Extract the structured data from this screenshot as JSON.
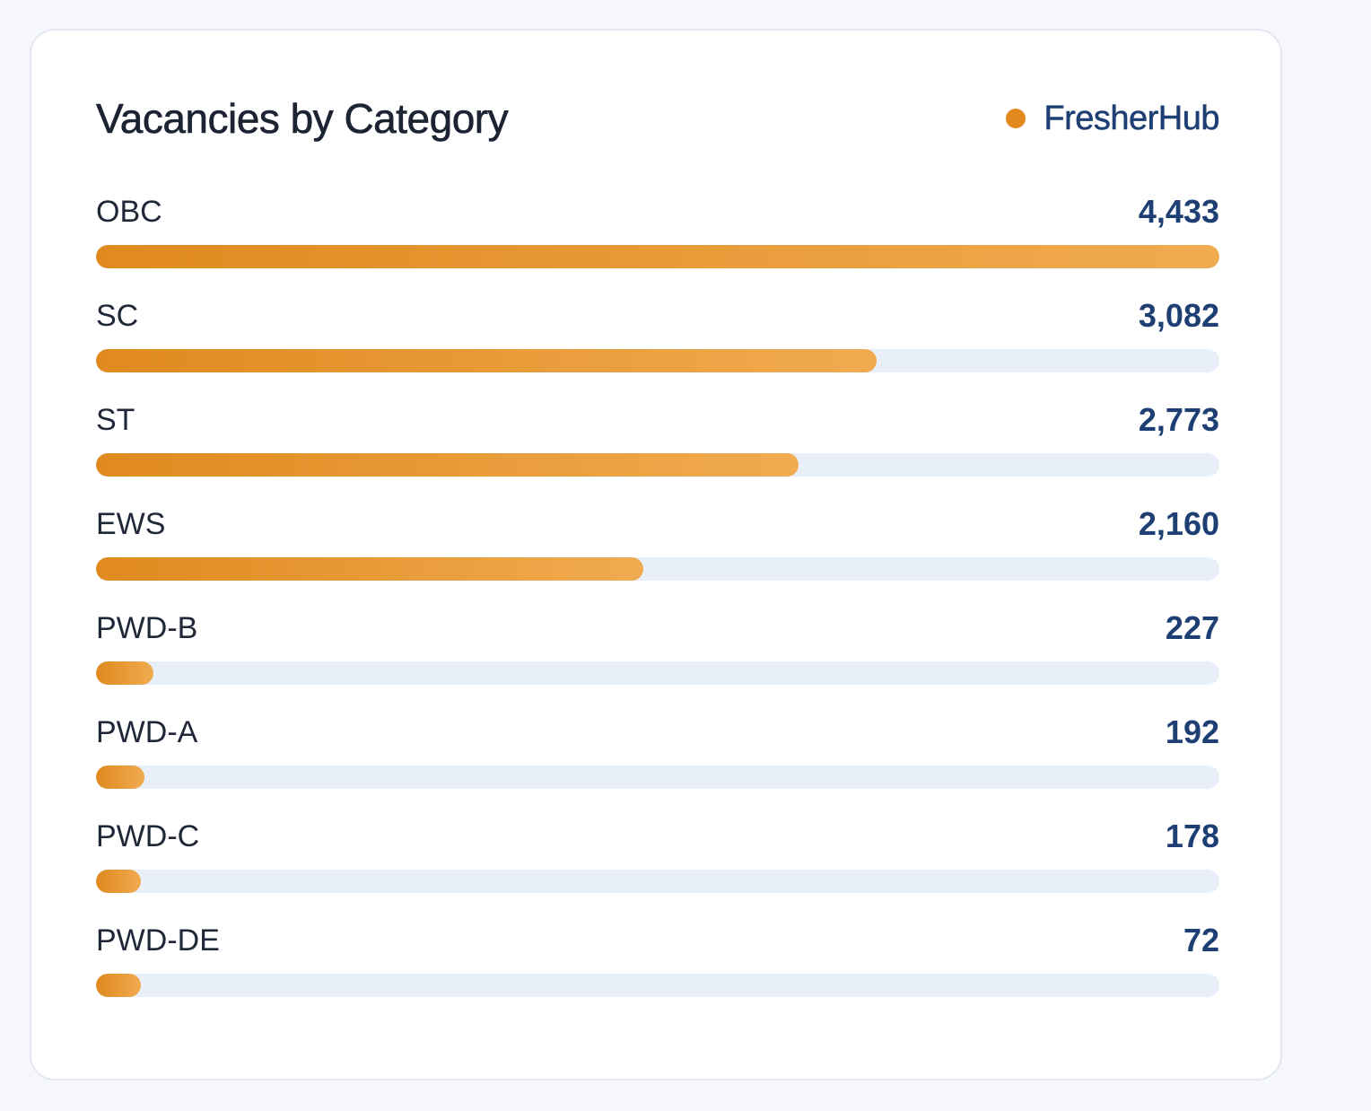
{
  "card": {
    "title": "Vacancies by Category",
    "brand": {
      "label": "FresherHub",
      "dot_color": "#e0891f"
    }
  },
  "colors": {
    "bar_start": "#e0891f",
    "bar_end": "#f0ab50",
    "track": "#e9eff8",
    "value_text": "#1e3f73"
  },
  "chart_data": {
    "type": "bar",
    "orientation": "horizontal",
    "categories": [
      "OBC",
      "SC",
      "ST",
      "EWS",
      "PWD-B",
      "PWD-A",
      "PWD-C",
      "PWD-DE"
    ],
    "values": [
      4433,
      3082,
      2773,
      2160,
      227,
      192,
      178,
      72
    ],
    "value_labels": [
      "4,433",
      "3,082",
      "2,773",
      "2,160",
      "227",
      "192",
      "178",
      "72"
    ],
    "title": "Vacancies by Category",
    "xlabel": "",
    "ylabel": "",
    "xlim": [
      0,
      4433
    ],
    "min_fill_fraction": 0.04,
    "grid": false,
    "legend": "top-right"
  }
}
